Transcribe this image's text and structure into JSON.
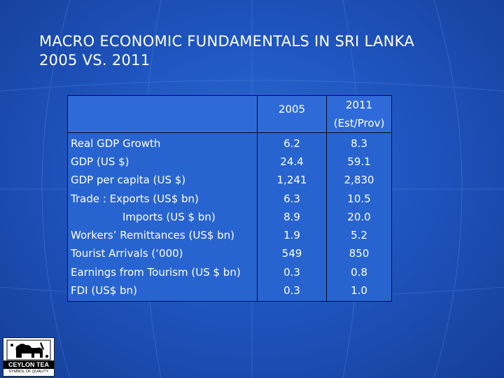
{
  "slide": {
    "title_line1": "MACRO ECONOMIC FUNDAMENTALS  IN SRI LANKA",
    "title_line2": "2005 VS. 2011"
  },
  "table": {
    "col_2005_header": "2005",
    "col_2011_header_line1": "2011",
    "col_2011_header_line2": "(Est/Prov)",
    "rows": [
      {
        "label": "Real GDP  Growth",
        "v2005": "6.2",
        "v2011": "8.3"
      },
      {
        "label": "GDP (US $)",
        "v2005": "24.4",
        "v2011": "59.1"
      },
      {
        "label": "GDP per capita (US $)",
        "v2005": "1,241",
        "v2011": "2,830"
      },
      {
        "label": "Trade :   Exports (US$ bn)",
        "v2005": "6.3",
        "v2011": "10.5"
      },
      {
        "label": "Imports  (US $ bn)",
        "v2005": "8.9",
        "v2011": "20.0"
      },
      {
        "label": "Workers’ Remittances (US$ bn)",
        "v2005": "1.9",
        "v2011": "5.2"
      },
      {
        "label": "Tourist Arrivals (‘000)",
        "v2005": "549",
        "v2011": "850"
      },
      {
        "label": "Earnings from Tourism (US $ bn)",
        "v2005": "0.3",
        "v2011": "0.8"
      },
      {
        "label": "FDI (US$ bn)",
        "v2005": "0.3",
        "v2011": "1.0"
      }
    ]
  },
  "logo": {
    "brand": "CEYLON TEA",
    "tagline": "SYMBOL OF QUALITY"
  },
  "colors": {
    "background": "#1f55c0",
    "table_fill": "#2f6bd8",
    "text": "#ffffff"
  }
}
